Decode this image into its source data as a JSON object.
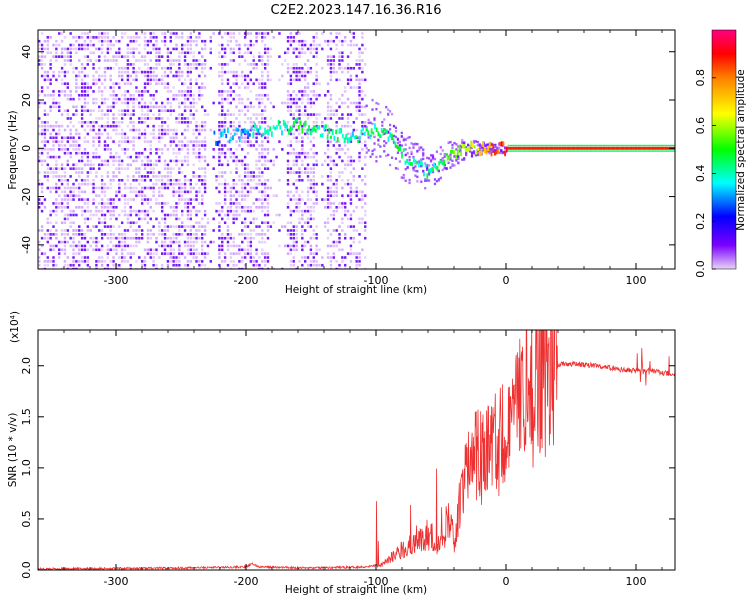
{
  "title": "C2E2.2023.147.16.36.R16",
  "chart_data": [
    {
      "type": "heatmap",
      "name": "spectrogram",
      "xlabel": "Height of straight line (km)",
      "ylabel": "Frequency (Hz)",
      "xlim": [
        -360,
        130
      ],
      "ylim": [
        -50,
        49
      ],
      "xticks": [
        -300,
        -200,
        -100,
        0,
        100
      ],
      "xtick_labels": [
        "-300",
        "-200",
        "-100",
        "0",
        "100"
      ],
      "yticks": [
        40,
        20,
        0,
        -20,
        -40
      ],
      "ytick_labels": [
        "40",
        "20",
        "0",
        "-20",
        "-40"
      ],
      "zlim": [
        0,
        1
      ],
      "ridge": [
        {
          "x": -215,
          "y": 5,
          "amp": 0.3
        },
        {
          "x": -160,
          "y": 10,
          "amp": 0.45
        },
        {
          "x": -120,
          "y": 4,
          "amp": 0.4
        },
        {
          "x": -95,
          "y": 8,
          "amp": 0.45
        },
        {
          "x": -80,
          "y": -3,
          "amp": 0.45
        },
        {
          "x": -60,
          "y": -10,
          "amp": 0.4
        },
        {
          "x": -45,
          "y": -3,
          "amp": 0.5
        },
        {
          "x": -30,
          "y": 0,
          "amp": 0.6
        },
        {
          "x": -15,
          "y": 0,
          "amp": 0.75
        },
        {
          "x": 0,
          "y": 0,
          "amp": 0.9
        },
        {
          "x": 130,
          "y": 0,
          "amp": 0.95
        }
      ],
      "grid": false
    },
    {
      "type": "colorbar",
      "name": "amplitude-colorbar",
      "label": "Normalized spectral amplitude",
      "range": [
        0,
        1
      ],
      "ticks": [
        0.0,
        0.2,
        0.4,
        0.6,
        0.8
      ],
      "tick_labels": [
        "0.0",
        "0.2",
        "0.4",
        "0.6",
        "0.8"
      ],
      "colormap": [
        "#e8d4f5",
        "#7a00ff",
        "#0000ff",
        "#00ffff",
        "#00ff00",
        "#ffff00",
        "#ff8000",
        "#ff0000",
        "#ff0080"
      ]
    },
    {
      "type": "line",
      "name": "snr",
      "xlabel": "Height of straight line (km)",
      "ylabel": "SNR (10 * v/v)",
      "scale_label": "(x10⁴)",
      "xlim": [
        -360,
        130
      ],
      "ylim": [
        0,
        2.35
      ],
      "xticks": [
        -300,
        -200,
        -100,
        0,
        100
      ],
      "xtick_labels": [
        "-300",
        "-200",
        "-100",
        "0",
        "100"
      ],
      "yticks": [
        0,
        0.5,
        1.0,
        1.5,
        2.0
      ],
      "ytick_labels": [
        "0.0",
        "0.5",
        "1.0",
        "1.5",
        "2.0"
      ],
      "color": "#ee3030",
      "grid": false,
      "series": [
        {
          "x": [
            -360,
            -250,
            -200,
            -195,
            -190,
            -150,
            -110,
            -95,
            -85,
            -70,
            -60,
            -50,
            -45,
            -40,
            -35,
            -30,
            -25,
            -20,
            -15,
            -10,
            -5,
            0,
            5,
            10,
            15,
            20,
            25,
            30,
            40,
            50,
            60,
            70,
            80,
            90,
            100,
            110,
            120,
            130
          ],
          "y": [
            0.01,
            0.02,
            0.03,
            0.06,
            0.03,
            0.02,
            0.03,
            0.05,
            0.15,
            0.3,
            0.35,
            0.25,
            0.5,
            0.3,
            0.6,
            0.9,
            1.2,
            1.1,
            1.3,
            1.2,
            1.3,
            1.2,
            1.4,
            1.55,
            1.7,
            1.8,
            1.92,
            1.98,
            2.01,
            2.02,
            2.01,
            2.0,
            1.98,
            1.96,
            1.95,
            1.96,
            1.93,
            1.92
          ]
        }
      ]
    }
  ]
}
